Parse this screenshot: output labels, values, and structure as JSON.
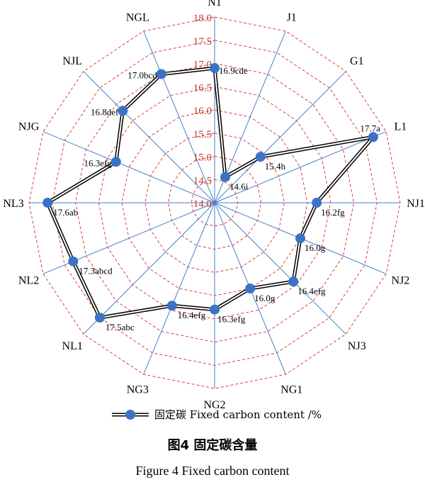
{
  "chart_data": {
    "type": "radar",
    "categories": [
      "N1",
      "J1",
      "G1",
      "L1",
      "NJ1",
      "NJ2",
      "NJ3",
      "NG1",
      "NG2",
      "NG3",
      "NL1",
      "NL2",
      "NL3",
      "NJG",
      "NJL",
      "NGL"
    ],
    "series": [
      {
        "name": "固定碳  Fixed carbon content /%",
        "values": [
          16.9,
          14.6,
          15.4,
          17.7,
          16.2,
          16.0,
          16.4,
          16.0,
          16.3,
          16.4,
          17.5,
          17.3,
          17.6,
          16.3,
          16.8,
          17.0
        ],
        "labels": [
          "16.9cde",
          "14.6i",
          "15.4h",
          "17.7a",
          "16.2fg",
          "16.0g",
          "16.4efg",
          "16.0g",
          "16.3efg",
          "16.4efg",
          "17.5abc",
          "17.3abcd",
          "17.6ab",
          "16.3efg",
          "16.8def",
          "17.0bcd"
        ]
      }
    ],
    "rlim": [
      14.0,
      18.0
    ],
    "ticks": [
      "14.0",
      "14.5",
      "15.0",
      "15.5",
      "16.0",
      "16.5",
      "17.0",
      "17.5",
      "18.0"
    ],
    "grid": true,
    "legend_position": "bottom",
    "colors": {
      "spoke": "#4a7fc8",
      "grid": "#d9403a",
      "tick_text": "#c0392b",
      "marker": "#3a73c6",
      "line": "#000000"
    }
  },
  "caption": {
    "cn": "图4  固定碳含量",
    "en": "Figure 4  Fixed carbon content"
  }
}
